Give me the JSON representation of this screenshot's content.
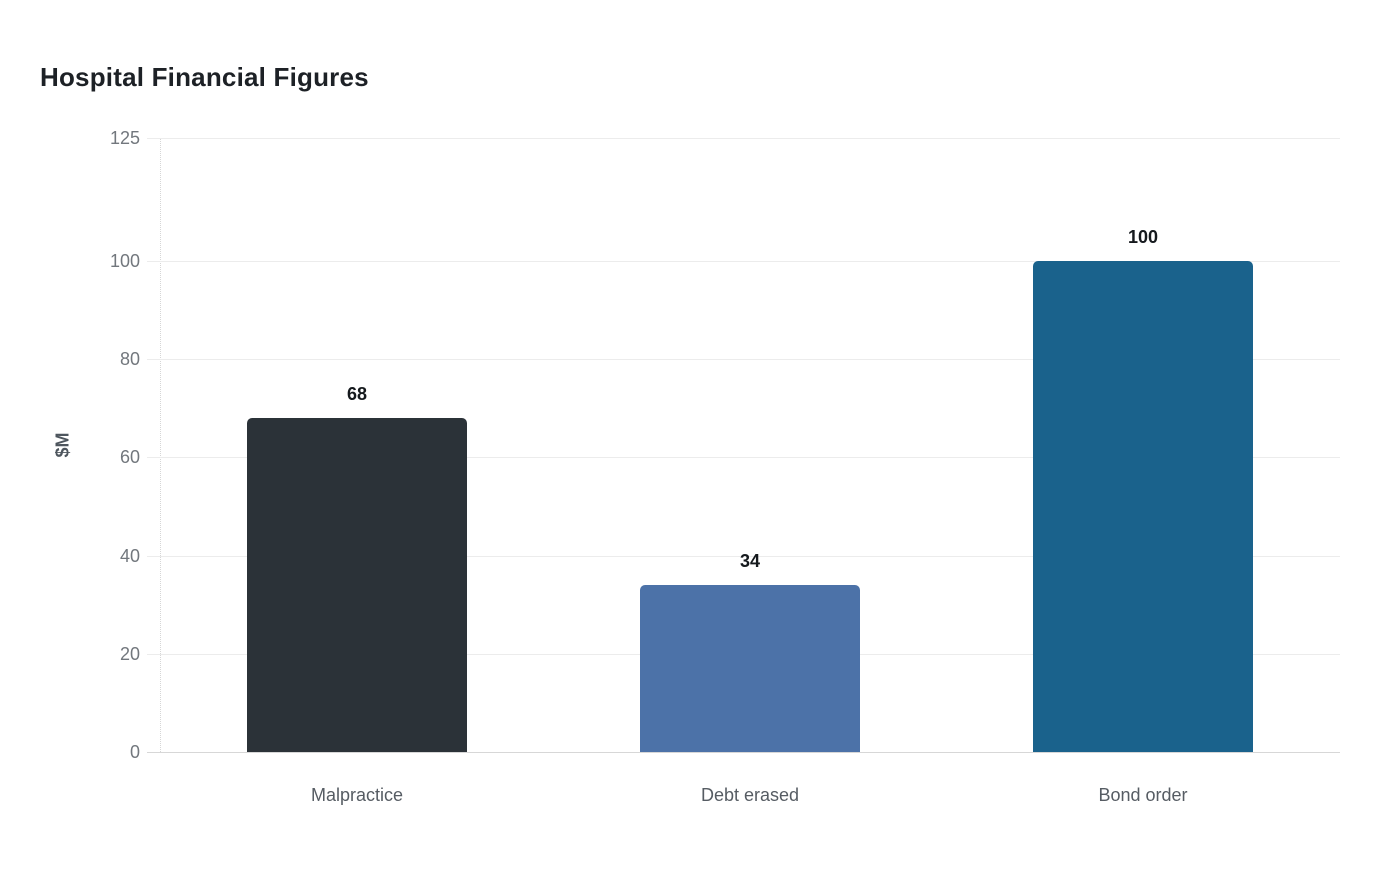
{
  "chart_data": {
    "type": "bar",
    "title": "Hospital Financial Figures",
    "xlabel": "",
    "ylabel": "$M",
    "categories": [
      "Malpractice",
      "Debt erased",
      "Bond order"
    ],
    "values": [
      68,
      34,
      100
    ],
    "data_labels": [
      "68",
      "34",
      "100"
    ],
    "bar_colors": [
      "#2b3238",
      "#4c72a8",
      "#1a628c"
    ],
    "yticks": [
      0,
      20,
      40,
      60,
      80,
      100,
      125
    ],
    "ylim": [
      0,
      125
    ],
    "grid": true,
    "legend_position": "none",
    "background": "#ffffff"
  },
  "colors": {
    "title_text": "#1d2126",
    "value_label_text": "#15191d",
    "tick_label_text": "#72777d",
    "category_label_text": "#565c63",
    "axis_title_text": "#4e565e",
    "gridline": "#ececec",
    "baseline": "#d7d7d7"
  }
}
